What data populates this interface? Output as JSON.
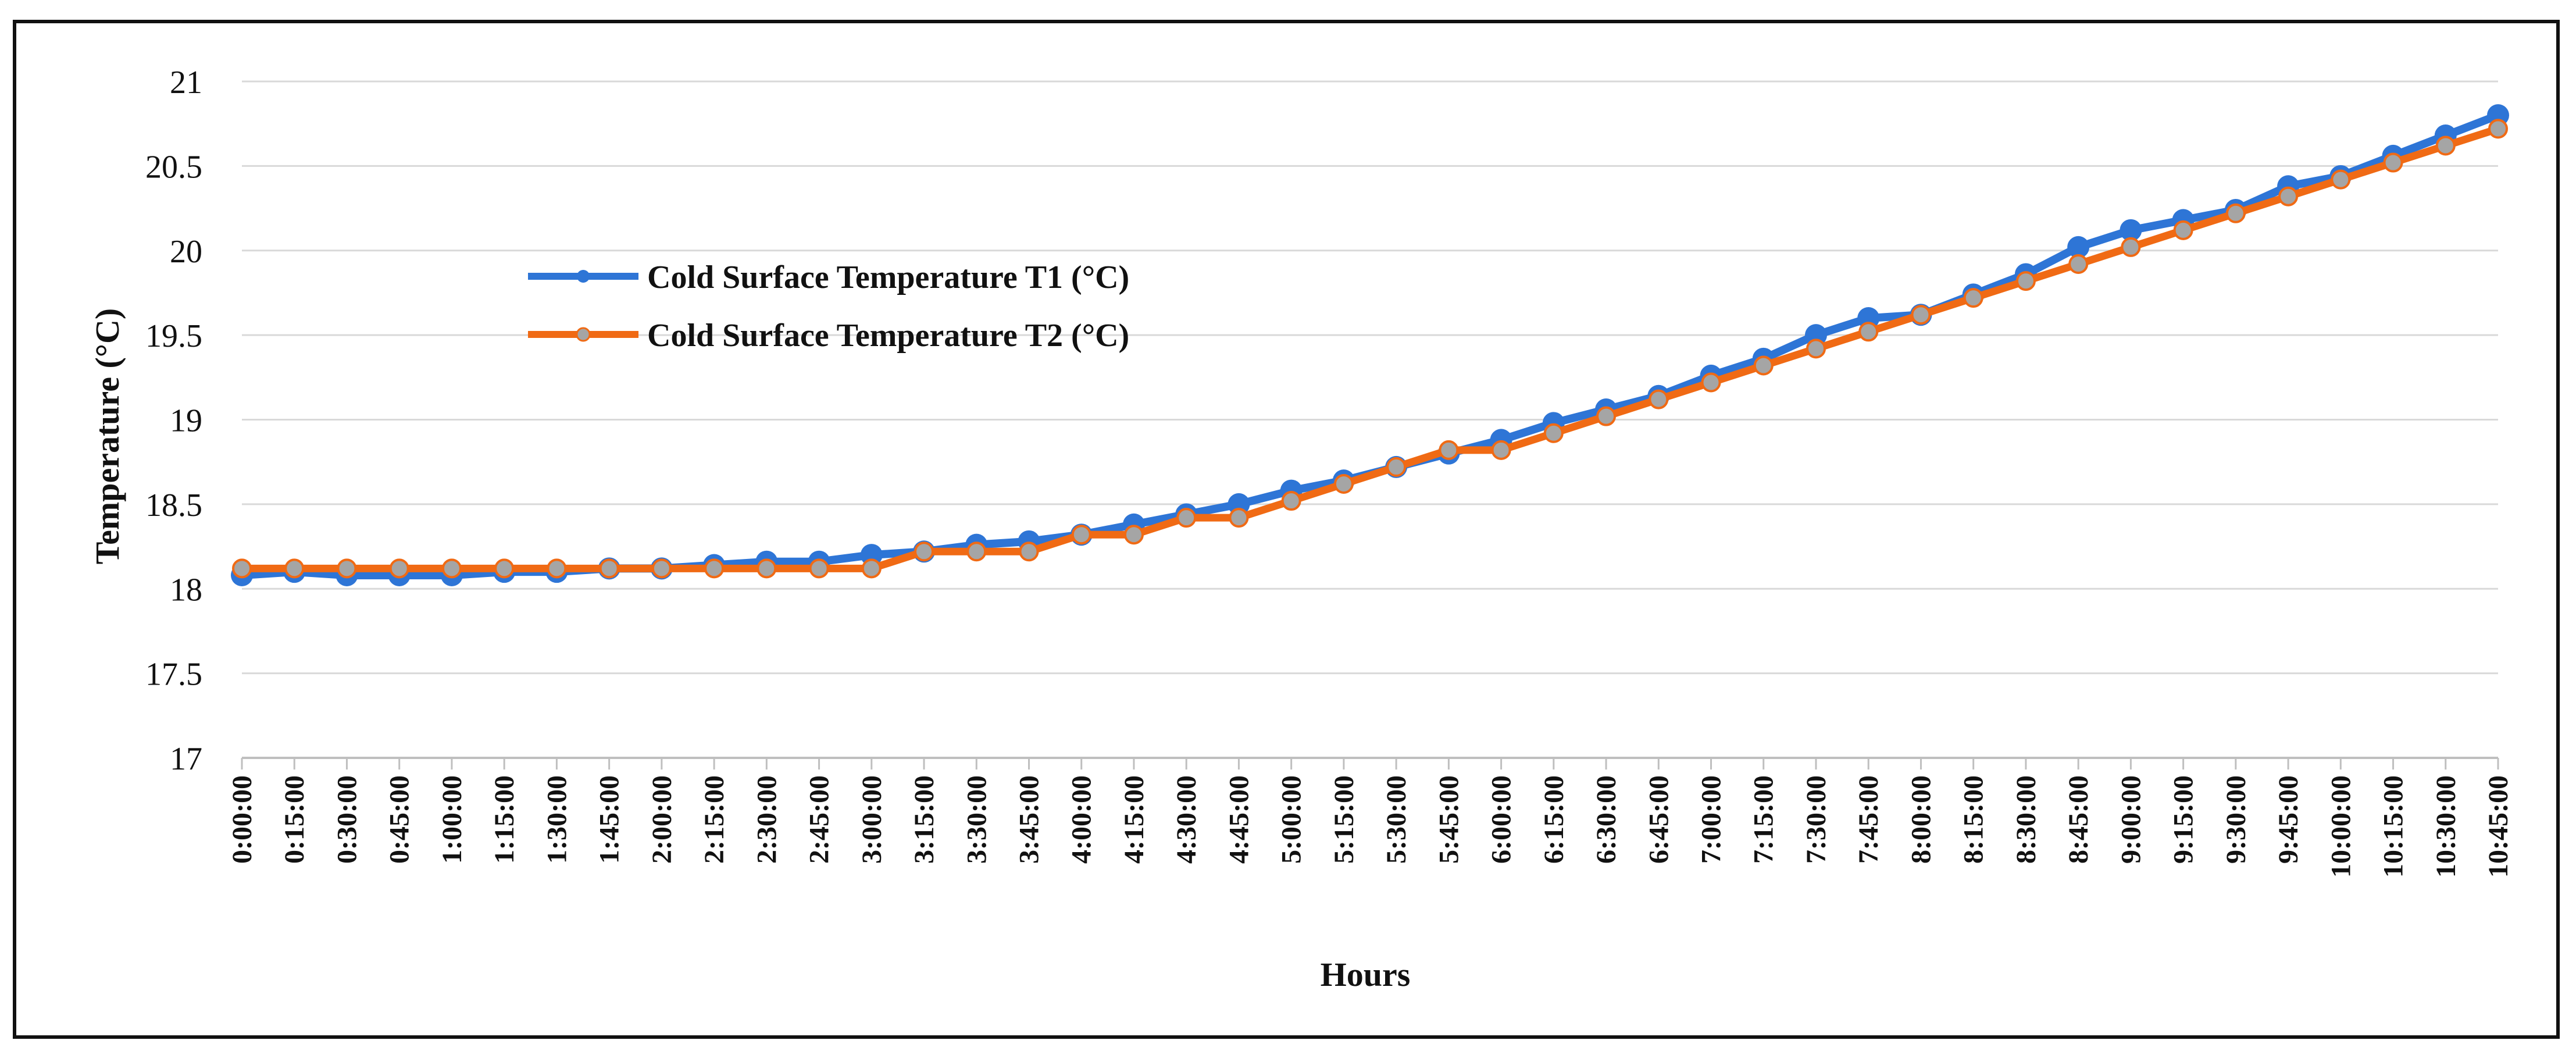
{
  "chart_data": {
    "type": "line",
    "title": "",
    "xlabel": "Hours",
    "ylabel": "Temperature (°C)",
    "ylim": [
      17,
      21
    ],
    "yticks": [
      "17",
      "17.5",
      "18",
      "18.5",
      "19",
      "19.5",
      "20",
      "20.5",
      "21"
    ],
    "grid": true,
    "legend_position": "upper-left-center",
    "categories": [
      "0:00:00",
      "0:15:00",
      "0:30:00",
      "0:45:00",
      "1:00:00",
      "1:15:00",
      "1:30:00",
      "1:45:00",
      "2:00:00",
      "2:15:00",
      "2:30:00",
      "2:45:00",
      "3:00:00",
      "3:15:00",
      "3:30:00",
      "3:45:00",
      "4:00:00",
      "4:15:00",
      "4:30:00",
      "4:45:00",
      "5:00:00",
      "5:15:00",
      "5:30:00",
      "5:45:00",
      "6:00:00",
      "6:15:00",
      "6:30:00",
      "6:45:00",
      "7:00:00",
      "7:15:00",
      "7:30:00",
      "7:45:00",
      "8:00:00",
      "8:15:00",
      "8:30:00",
      "8:45:00",
      "9:00:00",
      "9:15:00",
      "9:30:00",
      "9:45:00",
      "10:00:00",
      "10:15:00",
      "10:30:00",
      "10:45:00"
    ],
    "series": [
      {
        "name": "Cold Surface Temperature T1 (°C)",
        "color": "#2E75D6",
        "marker_color": "#2E75D6",
        "values": [
          18.08,
          18.1,
          18.08,
          18.08,
          18.08,
          18.1,
          18.1,
          18.12,
          18.12,
          18.14,
          18.16,
          18.16,
          18.2,
          18.22,
          18.26,
          18.28,
          18.32,
          18.38,
          18.44,
          18.5,
          18.58,
          18.64,
          18.72,
          18.8,
          18.88,
          18.98,
          19.06,
          19.14,
          19.26,
          19.36,
          19.5,
          19.6,
          19.62,
          19.74,
          19.86,
          20.02,
          20.12,
          20.18,
          20.24,
          20.38,
          20.44,
          20.56,
          20.68,
          20.8
        ]
      },
      {
        "name": "Cold Surface Temperature T2 (°C)",
        "color": "#F06A14",
        "marker_color": "#A5A5A5",
        "values": [
          18.12,
          18.12,
          18.12,
          18.12,
          18.12,
          18.12,
          18.12,
          18.12,
          18.12,
          18.12,
          18.12,
          18.12,
          18.12,
          18.22,
          18.22,
          18.22,
          18.32,
          18.32,
          18.42,
          18.42,
          18.52,
          18.62,
          18.72,
          18.82,
          18.82,
          18.92,
          19.02,
          19.12,
          19.22,
          19.32,
          19.42,
          19.52,
          19.62,
          19.72,
          19.82,
          19.92,
          20.02,
          20.12,
          20.22,
          20.32,
          20.42,
          20.52,
          20.62,
          20.72
        ]
      }
    ]
  }
}
